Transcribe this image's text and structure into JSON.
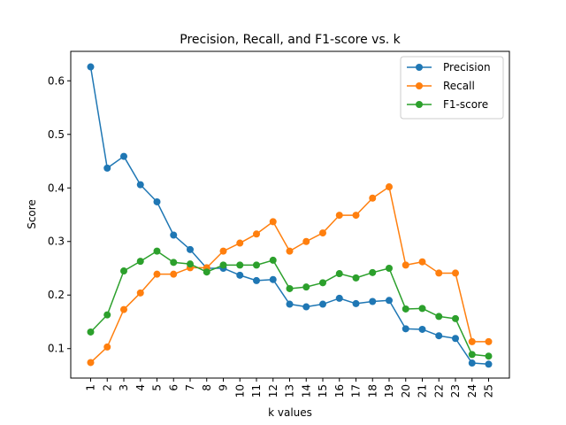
{
  "chart_data": {
    "type": "line",
    "title": "Precision, Recall, and F1-score vs. k",
    "xlabel": "k values",
    "ylabel": "Score",
    "categories": [
      "1",
      "2",
      "3",
      "4",
      "5",
      "6",
      "7",
      "8",
      "9",
      "10",
      "11",
      "12",
      "13",
      "14",
      "15",
      "16",
      "17",
      "18",
      "19",
      "20",
      "21",
      "22",
      "23",
      "24",
      "25"
    ],
    "yticks": [
      "0.1",
      "0.2",
      "0.3",
      "0.4",
      "0.5",
      "0.6"
    ],
    "ylim": [
      0.045,
      0.655
    ],
    "grid": false,
    "legend_position": "top-right",
    "series": [
      {
        "name": "Precision",
        "color": "#1f77b4",
        "values": [
          0.626,
          0.437,
          0.459,
          0.406,
          0.374,
          0.312,
          0.285,
          0.25,
          0.25,
          0.237,
          0.227,
          0.229,
          0.183,
          0.178,
          0.183,
          0.194,
          0.184,
          0.188,
          0.19,
          0.137,
          0.136,
          0.124,
          0.119,
          0.073,
          0.071
        ]
      },
      {
        "name": "Recall",
        "color": "#ff7f0e",
        "values": [
          0.074,
          0.103,
          0.173,
          0.204,
          0.239,
          0.239,
          0.251,
          0.251,
          0.282,
          0.297,
          0.314,
          0.337,
          0.282,
          0.3,
          0.316,
          0.349,
          0.349,
          0.381,
          0.402,
          0.256,
          0.262,
          0.241,
          0.241,
          0.113,
          0.113
        ]
      },
      {
        "name": "F1-score",
        "color": "#2ca02c",
        "values": [
          0.131,
          0.163,
          0.245,
          0.263,
          0.282,
          0.261,
          0.258,
          0.243,
          0.256,
          0.256,
          0.256,
          0.265,
          0.212,
          0.215,
          0.223,
          0.24,
          0.232,
          0.242,
          0.25,
          0.174,
          0.175,
          0.16,
          0.156,
          0.089,
          0.086
        ]
      }
    ]
  }
}
